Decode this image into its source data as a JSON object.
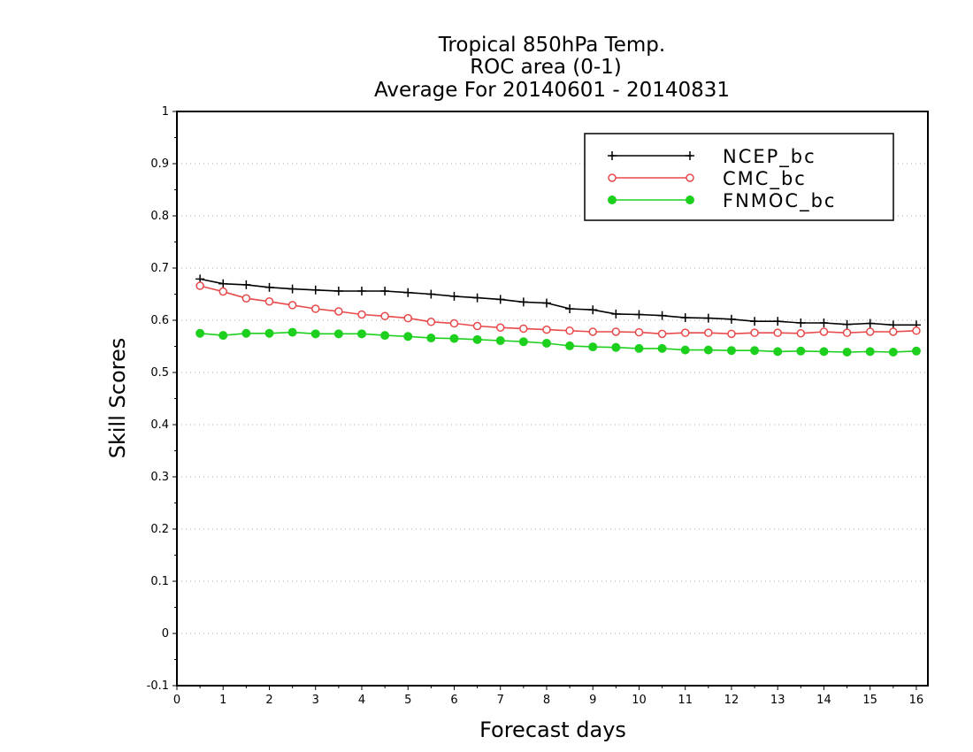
{
  "chart_data": {
    "type": "line",
    "title": [
      "Tropical 850hPa Temp.",
      "ROC area (0-1)",
      "Average For 20140601 - 20140831"
    ],
    "xlabel": "Forecast days",
    "ylabel": "Skill Scores",
    "xlim": [
      0,
      16.25
    ],
    "ylim": [
      -0.1,
      1
    ],
    "x_ticks": [
      0,
      1,
      2,
      3,
      4,
      5,
      6,
      7,
      8,
      9,
      10,
      11,
      12,
      13,
      14,
      15,
      16
    ],
    "x_tick_labels": [
      "0",
      "1",
      "2",
      "3",
      "4",
      "5",
      "6",
      "7",
      "8",
      "9",
      "10",
      "11",
      "12",
      "13",
      "14",
      "15",
      "16"
    ],
    "y_ticks": [
      -0.1,
      0,
      0.1,
      0.2,
      0.3,
      0.4,
      0.5,
      0.6,
      0.7,
      0.8,
      0.9,
      1
    ],
    "y_tick_labels": [
      "-0.1",
      "0",
      "0.1",
      "0.2",
      "0.3",
      "0.4",
      "0.5",
      "0.6",
      "0.7",
      "0.8",
      "0.9",
      "1"
    ],
    "grid": true,
    "legend_position": "top-right",
    "x": [
      0.5,
      1,
      1.5,
      2,
      2.5,
      3,
      3.5,
      4,
      4.5,
      5,
      5.5,
      6,
      6.5,
      7,
      7.5,
      8,
      8.5,
      9,
      9.5,
      10,
      10.5,
      11,
      11.5,
      12,
      12.5,
      13,
      13.5,
      14,
      14.5,
      15,
      15.5,
      16
    ],
    "series": [
      {
        "name": "NCEP_bc",
        "color": "#000000",
        "marker": "plus",
        "values": [
          0.679,
          0.67,
          0.668,
          0.663,
          0.66,
          0.658,
          0.656,
          0.656,
          0.656,
          0.653,
          0.65,
          0.646,
          0.643,
          0.64,
          0.635,
          0.633,
          0.622,
          0.62,
          0.612,
          0.611,
          0.609,
          0.605,
          0.604,
          0.602,
          0.598,
          0.598,
          0.595,
          0.595,
          0.592,
          0.594,
          0.591,
          0.591
        ]
      },
      {
        "name": "CMC_bc",
        "color": "#e8494a",
        "marker": "open-circle",
        "values": [
          0.666,
          0.655,
          0.642,
          0.636,
          0.629,
          0.622,
          0.617,
          0.611,
          0.608,
          0.604,
          0.597,
          0.594,
          0.589,
          0.586,
          0.584,
          0.582,
          0.58,
          0.578,
          0.578,
          0.577,
          0.574,
          0.576,
          0.576,
          0.574,
          0.576,
          0.576,
          0.575,
          0.578,
          0.576,
          0.578,
          0.578,
          0.58
        ]
      },
      {
        "name": "FNMOC_bc",
        "color": "#1ed01e",
        "marker": "filled-circle",
        "values": [
          0.575,
          0.571,
          0.575,
          0.575,
          0.577,
          0.574,
          0.574,
          0.574,
          0.571,
          0.569,
          0.566,
          0.565,
          0.563,
          0.561,
          0.559,
          0.556,
          0.551,
          0.549,
          0.548,
          0.546,
          0.546,
          0.543,
          0.543,
          0.542,
          0.542,
          0.54,
          0.541,
          0.54,
          0.539,
          0.54,
          0.539,
          0.541
        ]
      }
    ]
  }
}
